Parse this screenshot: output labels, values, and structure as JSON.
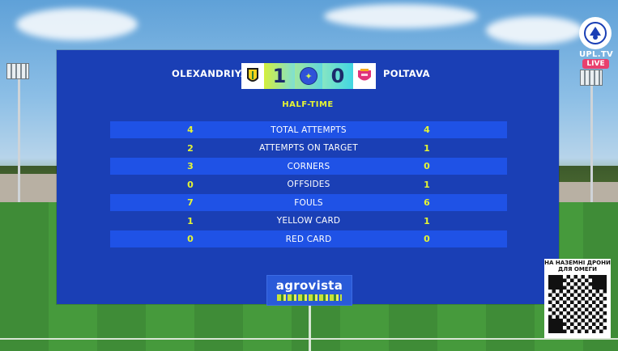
{
  "broadcast": {
    "logo_text": "UPL.TV",
    "live_label": "LIVE",
    "qr_title": "НА НАЗЕМНІ ДРОНИ ДЛЯ ОМЕГИ"
  },
  "scoreboard": {
    "home_team": "OLEXANDRIYA",
    "away_team": "POLTAVA",
    "home_score": "1",
    "away_score": "0",
    "status": "HALF-TIME"
  },
  "stats": [
    {
      "home": "4",
      "label": "TOTAL ATTEMPTS",
      "away": "4"
    },
    {
      "home": "2",
      "label": "ATTEMPTS ON TARGET",
      "away": "1"
    },
    {
      "home": "3",
      "label": "CORNERS",
      "away": "0"
    },
    {
      "home": "0",
      "label": "OFFSIDES",
      "away": "1"
    },
    {
      "home": "7",
      "label": "FOULS",
      "away": "6"
    },
    {
      "home": "1",
      "label": "YELLOW CARD",
      "away": "1"
    },
    {
      "home": "0",
      "label": "RED CARD",
      "away": "0"
    }
  ],
  "sponsor": {
    "name": "agrovista"
  },
  "colors": {
    "panel": "#1a3fb5",
    "row_highlight": "#1f52e6",
    "accent_yellow": "#e5f533",
    "live_pink": "#e8406e"
  },
  "icons": {
    "home_crest": "olexandriya-crest-icon",
    "away_crest": "poltava-crest-icon",
    "center": "ball-icon",
    "qr": "qr-code"
  }
}
